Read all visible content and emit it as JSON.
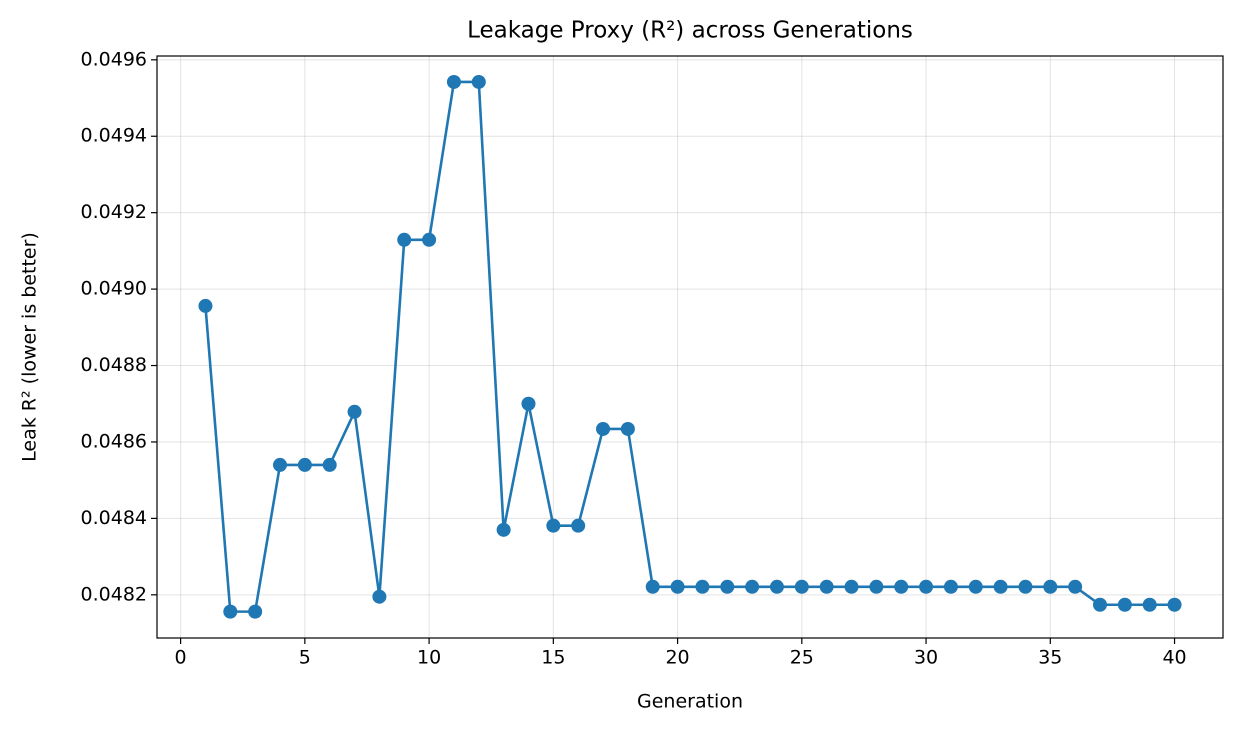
{
  "chart_data": {
    "type": "line",
    "title": "Leakage Proxy (R²) across Generations",
    "x_label": "Generation",
    "y_label": "Leak R² (lower is better)",
    "x": [
      1,
      2,
      3,
      4,
      5,
      6,
      7,
      8,
      9,
      10,
      11,
      12,
      13,
      14,
      15,
      16,
      17,
      18,
      19,
      20,
      21,
      22,
      23,
      24,
      25,
      26,
      27,
      28,
      29,
      30,
      31,
      32,
      33,
      34,
      35,
      36,
      37,
      38,
      39,
      40
    ],
    "series": [
      {
        "name": "Leak R²",
        "color": "#1f77b4",
        "values": [
          0.048956,
          0.048156,
          0.048156,
          0.04854,
          0.04854,
          0.04854,
          0.048679,
          0.048195,
          0.049129,
          0.049129,
          0.049542,
          0.049542,
          0.04837,
          0.0487,
          0.048381,
          0.048381,
          0.048634,
          0.048634,
          0.048221,
          0.048221,
          0.048221,
          0.048221,
          0.048221,
          0.048221,
          0.048221,
          0.048221,
          0.048221,
          0.048221,
          0.048221,
          0.048221,
          0.048221,
          0.048221,
          0.048221,
          0.048221,
          0.048221,
          0.048221,
          0.048174,
          0.048174,
          0.048174,
          0.048174
        ]
      }
    ],
    "xlim": [
      -0.95,
      41.95
    ],
    "ylim": [
      0.048087,
      0.04961
    ],
    "xticks": [
      0,
      5,
      10,
      15,
      20,
      25,
      30,
      35,
      40
    ],
    "yticks": [
      0.0482,
      0.0484,
      0.0486,
      0.0488,
      {
        "value": 0.049,
        "label": "0.0490"
      },
      0.0492,
      0.0494,
      0.0496
    ],
    "grid": true
  }
}
